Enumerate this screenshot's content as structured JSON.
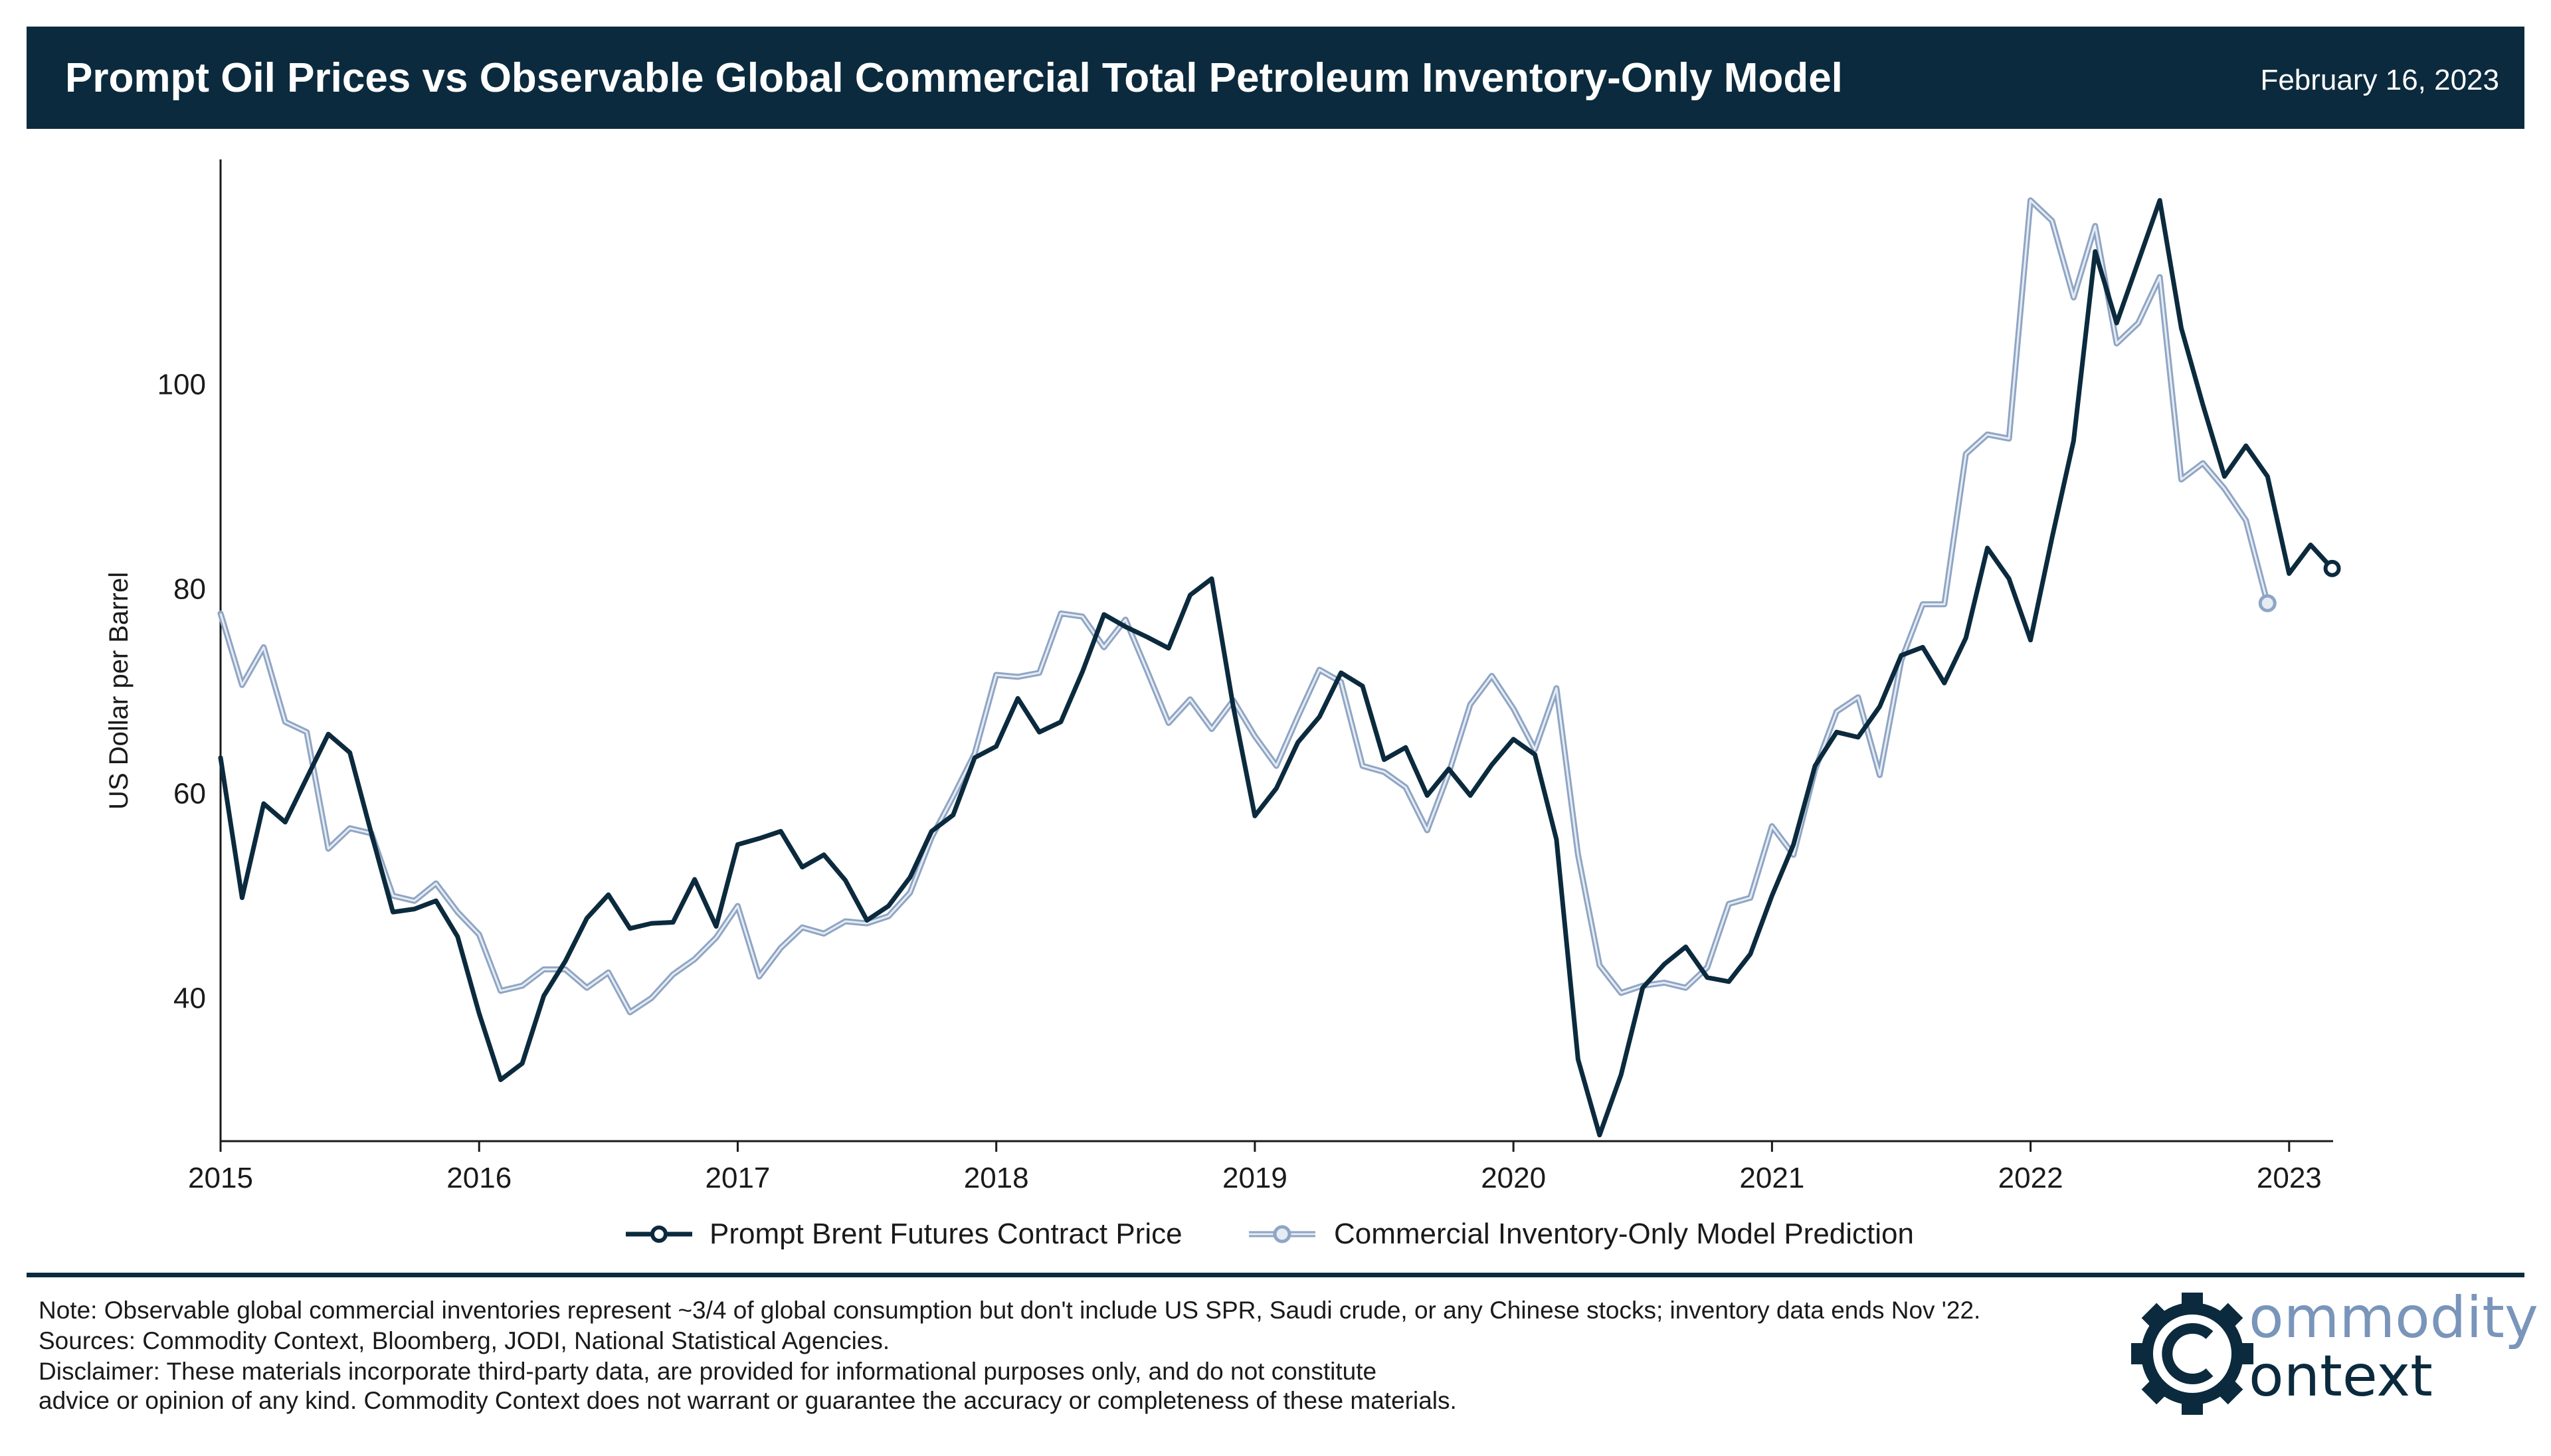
{
  "header": {
    "title": "Prompt Oil Prices vs Observable Global Commercial Total Petroleum Inventory-Only Model",
    "date": "February 16, 2023"
  },
  "colors": {
    "header_bg": "#0b2a3d",
    "brent": "#0b2a3d",
    "model": "#8fa5c4",
    "model_light": "#e6ecf4"
  },
  "chart_data": {
    "type": "line",
    "title": "Prompt Oil Prices vs Observable Global Commercial Total Petroleum Inventory-Only Model",
    "xlabel": "",
    "ylabel": "US Dollar per Barrel",
    "xlim": [
      2015.0,
      2023.17
    ],
    "ylim": [
      26,
      122
    ],
    "x_ticks": [
      2015,
      2016,
      2017,
      2018,
      2019,
      2020,
      2021,
      2022,
      2023
    ],
    "x_tick_labels": [
      "2015",
      "2016",
      "2017",
      "2018",
      "2019",
      "2020",
      "2021",
      "2022",
      "2023"
    ],
    "y_ticks": [
      40,
      60,
      80,
      100
    ],
    "y_tick_labels": [
      "40",
      "60",
      "80",
      "100"
    ],
    "grid": false,
    "legend_position": "bottom-center",
    "series": [
      {
        "name": "Prompt Brent Futures Contract Price",
        "x_start": 2015.0,
        "x_step": 0.08333,
        "marker": "last",
        "values": [
          63.5,
          49.8,
          59.0,
          57.2,
          61.5,
          65.8,
          64.0,
          56.1,
          48.4,
          48.7,
          49.5,
          46.0,
          38.5,
          32.0,
          33.6,
          40.2,
          43.6,
          47.8,
          50.1,
          46.8,
          47.3,
          47.4,
          51.6,
          47.0,
          55.0,
          55.6,
          56.3,
          52.8,
          54.0,
          51.5,
          47.6,
          49.0,
          51.8,
          56.3,
          57.9,
          63.5,
          64.6,
          69.3,
          66.0,
          67.0,
          71.9,
          77.5,
          76.3,
          75.3,
          74.2,
          79.4,
          81.0,
          68.5,
          57.8,
          60.5,
          65.0,
          67.5,
          71.8,
          70.5,
          63.3,
          64.5,
          59.8,
          62.4,
          59.8,
          62.8,
          65.3,
          63.8,
          55.5,
          34.0,
          26.6,
          32.5,
          41.0,
          43.3,
          45.0,
          42.0,
          41.6,
          44.3,
          50.0,
          55.0,
          62.7,
          66.0,
          65.5,
          68.5,
          73.5,
          74.3,
          70.8,
          75.2,
          84.0,
          81.0,
          75.0,
          85.0,
          94.5,
          113.0,
          106.0,
          112.0,
          118.0,
          105.5,
          98.0,
          91.0,
          94.0,
          91.0,
          81.5,
          84.3,
          82.0
        ]
      },
      {
        "name": "Commercial Inventory-Only Model Prediction",
        "x_start": 2015.0,
        "x_step": 0.08333,
        "marker": "last",
        "values": [
          77.6,
          70.6,
          74.3,
          67.0,
          66.0,
          54.6,
          56.6,
          56.1,
          50.0,
          49.5,
          51.2,
          48.4,
          46.2,
          40.7,
          41.2,
          42.8,
          42.8,
          41.0,
          42.5,
          38.6,
          40.0,
          42.3,
          43.8,
          45.9,
          49.0,
          42.1,
          44.9,
          46.9,
          46.3,
          47.5,
          47.3,
          48.0,
          50.3,
          55.7,
          59.7,
          63.9,
          71.6,
          71.4,
          71.8,
          77.6,
          77.3,
          74.3,
          77.0,
          72.0,
          66.9,
          69.2,
          66.3,
          69.1,
          65.6,
          62.7,
          67.5,
          72.1,
          70.9,
          62.7,
          62.1,
          60.6,
          56.4,
          62.0,
          68.7,
          71.5,
          68.3,
          64.3,
          70.3,
          54.0,
          43.2,
          40.5,
          41.2,
          41.5,
          41.0,
          43.0,
          49.2,
          49.8,
          56.8,
          54.0,
          62.3,
          68.0,
          69.4,
          61.8,
          73.0,
          78.5,
          78.5,
          93.2,
          95.1,
          94.7,
          118.0,
          116.0,
          108.5,
          115.5,
          104.0,
          106.0,
          110.5,
          90.7,
          92.3,
          89.8,
          86.7,
          78.6
        ]
      }
    ]
  },
  "legend": {
    "brent_label": "Prompt Brent Futures Contract Price",
    "model_label": "Commercial Inventory-Only Model Prediction"
  },
  "footer": {
    "note": "Note: Observable global commercial inventories represent ~3/4 of global consumption but don't include US SPR, Saudi crude, or any Chinese stocks; inventory data ends Nov '22.",
    "sources": "Sources: Commodity Context, Bloomberg, JODI, National Statistical Agencies.",
    "disclaimer_1": "Disclaimer: These materials incorporate third-party data, are provided for informational purposes only, and do not constitute",
    "disclaimer_2": "advice or opinion of any kind. Commodity Context does not warrant or guarantee the accuracy or completeness of these materials."
  },
  "logo": {
    "word_1": "ommodity",
    "word_2": "ontext",
    "icon": "gear-c-icon"
  }
}
